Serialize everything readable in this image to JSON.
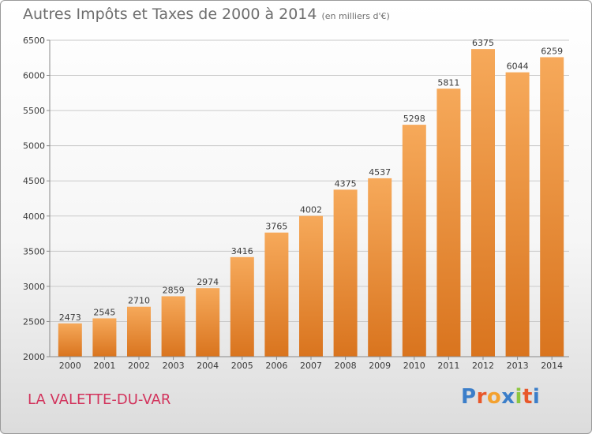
{
  "title": "Autres Impôts et Taxes de 2000 à 2014",
  "title_unit": "(en milliers d'€)",
  "city": "LA VALETTE-DU-VAR",
  "logo": {
    "letters": [
      "P",
      "r",
      "o",
      "x",
      "i",
      "t",
      "i"
    ],
    "colors": [
      "#3b7ec9",
      "#e8572a",
      "#f3a12f",
      "#3b7ec9",
      "#8cc63f",
      "#e8572a",
      "#3b7ec9"
    ]
  },
  "colors": {
    "bar_top": "#f6a95a",
    "bar_bottom": "#d9741e",
    "grid": "#c9c9c9",
    "axis": "#8a8a8a"
  },
  "chart_data": {
    "type": "bar",
    "title": "Autres Impôts et Taxes de 2000 à 2014",
    "xlabel": "",
    "ylabel": "",
    "categories": [
      "2000",
      "2001",
      "2002",
      "2003",
      "2004",
      "2005",
      "2006",
      "2007",
      "2008",
      "2009",
      "2010",
      "2011",
      "2012",
      "2013",
      "2014"
    ],
    "values": [
      2473,
      2545,
      2710,
      2859,
      2974,
      3416,
      3765,
      4002,
      4375,
      4537,
      5298,
      5811,
      6375,
      6044,
      6259
    ],
    "ylim": [
      2000,
      6500
    ],
    "yticks": [
      2000,
      2500,
      3000,
      3500,
      4000,
      4500,
      5000,
      5500,
      6000,
      6500
    ],
    "grid": true,
    "data_labels": true
  }
}
